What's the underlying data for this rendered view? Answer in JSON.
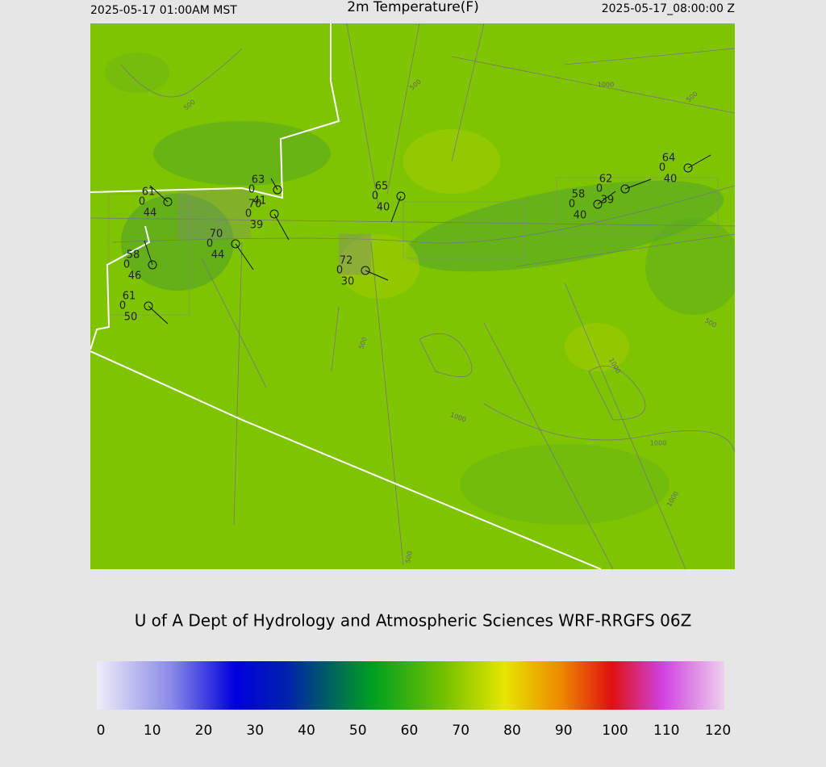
{
  "header": {
    "left": "2025-05-17 01:00AM MST",
    "title": "2m Temperature(F)",
    "right": "2025-05-17_08:00:00 Z"
  },
  "credit": "U of A Dept of Hydrology and Atmospheric Sciences WRF-RRGFS 06Z",
  "stations": [
    {
      "temp": "61",
      "wind": "0",
      "dew": "44"
    },
    {
      "temp": "63",
      "wind": "0",
      "dew": "41"
    },
    {
      "temp": "70",
      "wind": "0",
      "dew": "39"
    },
    {
      "temp": "70",
      "wind": "0",
      "dew": "44"
    },
    {
      "temp": "58",
      "wind": "0",
      "dew": "46"
    },
    {
      "temp": "61",
      "wind": "0",
      "dew": "50"
    },
    {
      "temp": "65",
      "wind": "0",
      "dew": "40"
    },
    {
      "temp": "72",
      "wind": "0",
      "dew": "30"
    },
    {
      "temp": "58",
      "wind": "0",
      "dew": "40"
    },
    {
      "temp": "62",
      "wind": "0",
      "dew": "39"
    },
    {
      "temp": "64",
      "wind": "0",
      "dew": "40"
    }
  ],
  "contour_labels": [
    "500",
    "500",
    "1000",
    "500",
    "500",
    "1000",
    "1000",
    "1000",
    "500",
    "1000",
    "500"
  ],
  "colorbar": {
    "lim": [
      0,
      120
    ],
    "ticks": [
      0,
      10,
      20,
      30,
      40,
      50,
      60,
      70,
      80,
      90,
      100,
      110,
      120
    ]
  }
}
